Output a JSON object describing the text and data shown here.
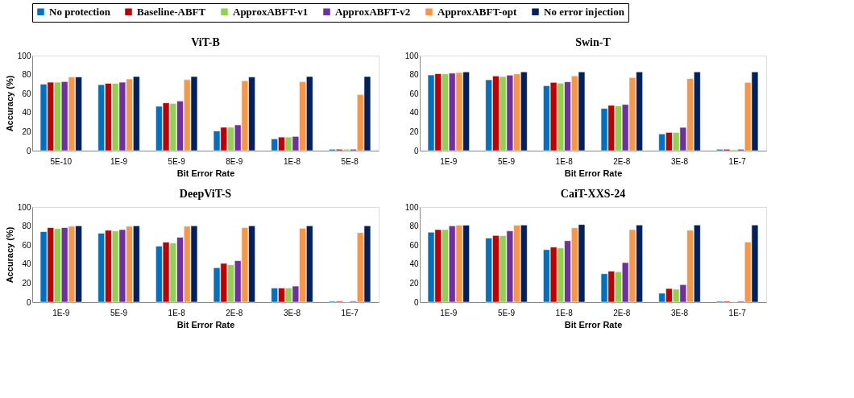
{
  "chart_data": [
    {
      "type": "bar",
      "title": "ViT-B",
      "xlabel": "Bit Error Rate",
      "ylabel": "Accuracy (%)",
      "categories": [
        "5E-10",
        "1E-9",
        "5E-9",
        "8E-9",
        "1E-8",
        "5E-8"
      ],
      "ylim": [
        0,
        100
      ],
      "yticks": [
        0,
        20,
        40,
        60,
        80,
        100
      ],
      "legend": "top",
      "series": [
        {
          "name": "No protection",
          "color": "#0070c0",
          "values": [
            70,
            69.4,
            46.7,
            20.7,
            12.4,
            1.5
          ]
        },
        {
          "name": "Baseline-ABFT",
          "color": "#c00000",
          "values": [
            72,
            70.8,
            50.3,
            24.6,
            14.3,
            1.5
          ]
        },
        {
          "name": "ApproxABFT-v1",
          "color": "#92d050",
          "values": [
            72,
            70.8,
            49.7,
            24.6,
            14.3,
            1.5
          ]
        },
        {
          "name": "ApproxABFT-v2",
          "color": "#7030a0",
          "values": [
            72.6,
            72,
            52.2,
            27.1,
            15,
            1.5
          ]
        },
        {
          "name": "ApproxABFT-opt",
          "color": "#f79646",
          "values": [
            77.5,
            75.4,
            74.7,
            73.6,
            72.6,
            59
          ]
        },
        {
          "name": "No error injection",
          "color": "#002060",
          "values": [
            77.5,
            78,
            78,
            77.5,
            78,
            78
          ]
        }
      ]
    },
    {
      "type": "bar",
      "title": "Swin-T",
      "xlabel": "Bit Error Rate",
      "categories": [
        "1E-9",
        "5E-9",
        "1E-8",
        "2E-8",
        "3E-8",
        "1E-7"
      ],
      "ylim": [
        0,
        100
      ],
      "yticks": [
        0,
        20,
        40,
        60,
        80,
        100
      ],
      "series": [
        {
          "name": "No protection",
          "color": "#0070c0",
          "values": [
            79.6,
            74.5,
            68.3,
            44.4,
            17.6,
            1.5
          ]
        },
        {
          "name": "Baseline-ABFT",
          "color": "#c00000",
          "values": [
            81,
            78.5,
            71.8,
            47.7,
            19.2,
            1.5
          ]
        },
        {
          "name": "ApproxABFT-v1",
          "color": "#92d050",
          "values": [
            80.8,
            78,
            71,
            47.2,
            19.2,
            1
          ]
        },
        {
          "name": "ApproxABFT-v2",
          "color": "#7030a0",
          "values": [
            81.5,
            79.4,
            72.5,
            48.6,
            24.5,
            1.5
          ]
        },
        {
          "name": "ApproxABFT-opt",
          "color": "#f79646",
          "values": [
            82.2,
            80.8,
            78.7,
            76.9,
            75.9,
            71.8
          ]
        },
        {
          "name": "No error injection",
          "color": "#002060",
          "values": [
            82.9,
            82.9,
            82.9,
            82.9,
            82.9,
            82.9
          ]
        }
      ]
    },
    {
      "type": "bar",
      "title": "DeepViT-S",
      "xlabel": "Bit Error Rate",
      "ylabel": "Accuracy (%)",
      "categories": [
        "1E-9",
        "5E-9",
        "1E-8",
        "2E-8",
        "3E-8",
        "1E-7"
      ],
      "ylim": [
        0,
        100
      ],
      "yticks": [
        0,
        20,
        40,
        60,
        80,
        100
      ],
      "series": [
        {
          "name": "No protection",
          "color": "#0070c0",
          "values": [
            74.2,
            72.4,
            58.9,
            36.2,
            14.8,
            1
          ]
        },
        {
          "name": "Baseline-ABFT",
          "color": "#c00000",
          "values": [
            78.4,
            75.6,
            63.1,
            40.8,
            14.8,
            1
          ]
        },
        {
          "name": "ApproxABFT-v1",
          "color": "#92d050",
          "values": [
            77.3,
            74.9,
            62.2,
            39.4,
            14.8,
            0.5
          ]
        },
        {
          "name": "ApproxABFT-v2",
          "color": "#7030a0",
          "values": [
            78.4,
            76.3,
            68.2,
            43.6,
            16.9,
            1
          ]
        },
        {
          "name": "ApproxABFT-opt",
          "color": "#f79646",
          "values": [
            79.8,
            79.8,
            79.8,
            78.4,
            77.7,
            73.1
          ]
        },
        {
          "name": "No error injection",
          "color": "#002060",
          "values": [
            80.3,
            80.3,
            80.3,
            80.3,
            80.3,
            80.3
          ]
        }
      ]
    },
    {
      "type": "bar",
      "title": "CaiT-XXS-24",
      "xlabel": "Bit Error Rate",
      "categories": [
        "1E-9",
        "5E-9",
        "1E-8",
        "2E-8",
        "3E-8",
        "1E-7"
      ],
      "ylim": [
        0,
        100
      ],
      "yticks": [
        0,
        20,
        40,
        60,
        80,
        100
      ],
      "series": [
        {
          "name": "No protection",
          "color": "#0070c0",
          "values": [
            73.6,
            67.4,
            55.2,
            29.9,
            9.4,
            1
          ]
        },
        {
          "name": "Baseline-ABFT",
          "color": "#c00000",
          "values": [
            76.3,
            70.1,
            57.9,
            32.6,
            14.3,
            1
          ]
        },
        {
          "name": "ApproxABFT-v1",
          "color": "#92d050",
          "values": [
            76.3,
            69.9,
            57,
            32,
            13.6,
            0.5
          ]
        },
        {
          "name": "ApproxABFT-v2",
          "color": "#7030a0",
          "values": [
            80.2,
            74.9,
            64.6,
            41.6,
            18.4,
            1
          ]
        },
        {
          "name": "ApproxABFT-opt",
          "color": "#f79646",
          "values": [
            80.9,
            80.9,
            78.2,
            76.3,
            75.6,
            63.2
          ]
        },
        {
          "name": "No error injection",
          "color": "#002060",
          "values": [
            80.9,
            81.1,
            81.6,
            81.1,
            81.1,
            81.1
          ]
        }
      ]
    }
  ]
}
